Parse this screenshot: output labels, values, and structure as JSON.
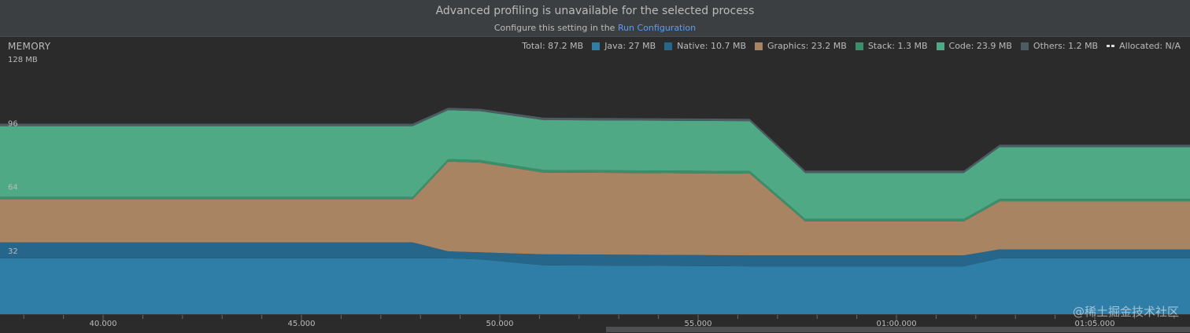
{
  "banner": {
    "title": "Advanced profiling is unavailable for the selected process",
    "subtitle_prefix": "Configure this setting in the",
    "link": "Run Configuration"
  },
  "monitor": {
    "label": "MEMORY"
  },
  "legend": {
    "total": "Total: 87.2 MB",
    "items": [
      {
        "label": "Java: 27 MB",
        "color": "#2f7ea8"
      },
      {
        "label": "Native: 10.7 MB",
        "color": "#25668a"
      },
      {
        "label": "Graphics: 23.2 MB",
        "color": "#a88463"
      },
      {
        "label": "Stack: 1.3 MB",
        "color": "#3a8f6b"
      },
      {
        "label": "Code: 23.9 MB",
        "color": "#4ea984"
      },
      {
        "label": "Others: 1.2 MB",
        "color": "#4d5b63"
      }
    ],
    "allocated": "Allocated: N/A"
  },
  "chart_data": {
    "type": "area",
    "stacked": true,
    "title": "MEMORY",
    "ylabel": "MB",
    "ylim": [
      0,
      128
    ],
    "y_ticks": [
      {
        "value": 128,
        "label": "128 MB"
      },
      {
        "value": 96,
        "label": "96"
      },
      {
        "value": 64,
        "label": "64"
      },
      {
        "value": 32,
        "label": "32"
      }
    ],
    "x_unit": "seconds",
    "x_range": [
      37.4,
      67.4
    ],
    "x_ticks": [
      {
        "value": 40,
        "label": "40.000"
      },
      {
        "value": 45,
        "label": "45.000"
      },
      {
        "value": 50,
        "label": "50.000"
      },
      {
        "value": 55,
        "label": "55.000"
      },
      {
        "value": 60,
        "label": "01:00.000"
      },
      {
        "value": 65,
        "label": "01:05.000"
      }
    ],
    "x_minor_step": 1,
    "x": [
      37.4,
      47.8,
      48.7,
      49.5,
      51.1,
      56.3,
      57.7,
      61.7,
      62.6,
      67.4
    ],
    "series": [
      {
        "name": "Java",
        "color": "#2f7ea8",
        "values": [
          28,
          28,
          28,
          27.5,
          24.5,
          24,
          24,
          24,
          28,
          28
        ]
      },
      {
        "name": "Native",
        "color": "#25668a",
        "values": [
          8,
          8,
          3.5,
          3.5,
          5.5,
          5.5,
          5.5,
          5.5,
          4.5,
          4.5
        ]
      },
      {
        "name": "Graphics",
        "color": "#a88463",
        "values": [
          21.5,
          21.5,
          45,
          45,
          41,
          41,
          17,
          17,
          24,
          24
        ]
      },
      {
        "name": "Stack",
        "color": "#3a8f6b",
        "values": [
          1.3,
          1.3,
          1.3,
          1.3,
          1.3,
          1.3,
          1.3,
          1.3,
          1.3,
          1.3
        ]
      },
      {
        "name": "Code",
        "color": "#4ea984",
        "values": [
          35.5,
          35.5,
          24.5,
          24.5,
          25,
          25,
          23,
          23,
          26,
          26
        ]
      },
      {
        "name": "Others",
        "color": "#4d5b63",
        "values": [
          1.2,
          1.2,
          1.2,
          1.2,
          1.2,
          1.2,
          1.2,
          1.2,
          1.2,
          1.2
        ]
      }
    ]
  },
  "watermark": "@稀土掘金技术社区"
}
